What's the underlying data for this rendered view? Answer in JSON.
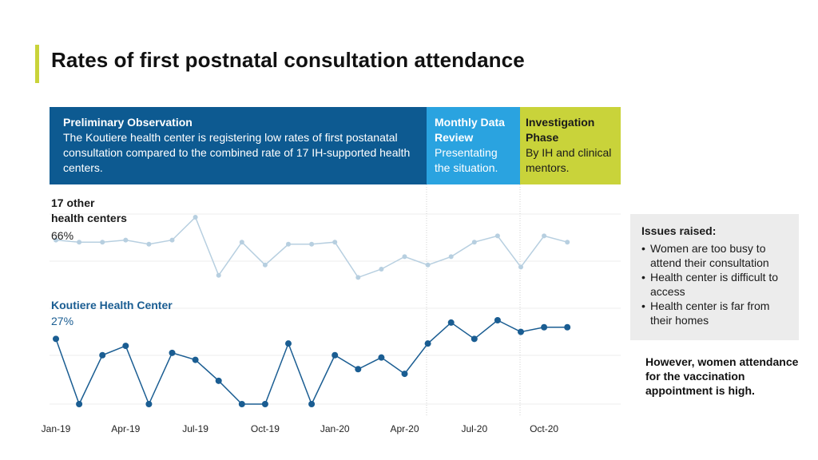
{
  "title": "Rates of first postnatal consultation attendance",
  "phases": [
    {
      "title": "Preliminary Observation",
      "text": "The Koutiere health center is registering low rates of first postanatal consultation compared to the combined rate of 17 IH-supported health centers."
    },
    {
      "title": "Monthly Data Review",
      "text": "Presentating the situation."
    },
    {
      "title": "Investigation Phase",
      "text": "By IH and clinical mentors."
    }
  ],
  "issues": {
    "title": "Issues raised:",
    "items": [
      "Women are too busy to attend their consultation",
      "Health center is difficult to access",
      "Health center is far from their homes"
    ]
  },
  "note": "However, women attendance for the vaccination appointment is high.",
  "colors": {
    "accent_bar": "#c9d33a",
    "phase1": "#0d5a91",
    "phase2": "#2aa3e0",
    "phase3": "#c9d33a",
    "other_series": "#b7cfe0",
    "koutiere_series": "#1a5d92"
  },
  "chart_data": {
    "type": "line",
    "x": [
      "Jan-19",
      "Feb-19",
      "Mar-19",
      "Apr-19",
      "May-19",
      "Jun-19",
      "Jul-19",
      "Aug-19",
      "Sep-19",
      "Oct-19",
      "Nov-19",
      "Dec-19",
      "Jan-20",
      "Feb-20",
      "Mar-20",
      "Apr-20",
      "May-20",
      "Jun-20",
      "Jul-20",
      "Aug-20",
      "Sep-20",
      "Oct-20",
      "Nov-20"
    ],
    "tick_labels": [
      "Jan-19",
      "Apr-19",
      "Jul-19",
      "Oct-19",
      "Jan-20",
      "Apr-20",
      "Jul-20",
      "Oct-20"
    ],
    "series": [
      {
        "name": "17 other health centers",
        "label_line1": "17 other",
        "label_line2": "health centers",
        "value_label": "66%",
        "values": [
          69,
          68,
          68,
          69,
          67,
          69,
          80,
          52,
          68,
          57,
          67,
          67,
          68,
          51,
          55,
          61,
          57,
          61,
          68,
          71,
          56,
          71,
          68
        ]
      },
      {
        "name": "Koutiere Health Center",
        "value_label": "27%",
        "values": [
          28,
          0,
          21,
          25,
          0,
          22,
          19,
          10,
          0,
          0,
          26,
          0,
          21,
          15,
          20,
          13,
          26,
          35,
          28,
          36,
          31,
          33,
          33
        ]
      }
    ],
    "grid": true,
    "legend": "inline-left"
  }
}
